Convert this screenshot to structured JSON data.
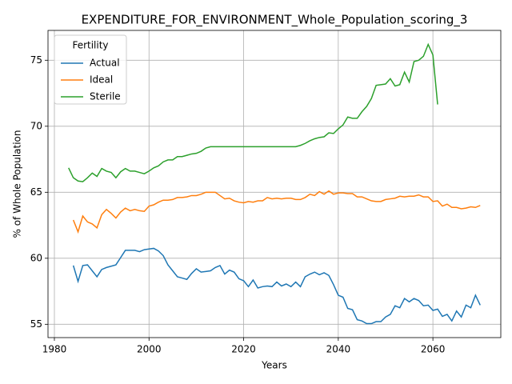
{
  "chart_data": {
    "type": "line",
    "title": "EXPENDITURE_FOR_ENVIRONMENT_Whole_Population_scoring_3",
    "xlabel": "Years",
    "ylabel": "% of Whole Population",
    "x": [
      1983,
      1984,
      1985,
      1986,
      1987,
      1988,
      1989,
      1990,
      1991,
      1992,
      1993,
      1994,
      1995,
      1996,
      1997,
      1998,
      1999,
      2000,
      2001,
      2002,
      2003,
      2004,
      2005,
      2006,
      2007,
      2008,
      2009,
      2010,
      2011,
      2012,
      2013,
      2014,
      2015,
      2016,
      2017,
      2018,
      2019,
      2020,
      2021,
      2022,
      2023,
      2024,
      2025,
      2026,
      2027,
      2028,
      2029,
      2030,
      2031,
      2032,
      2033,
      2034,
      2035,
      2036,
      2037,
      2038,
      2039,
      2040,
      2041,
      2042,
      2043,
      2044,
      2045,
      2046,
      2047,
      2048,
      2049,
      2050,
      2051,
      2052,
      2053,
      2054,
      2055,
      2056,
      2057,
      2058,
      2059,
      2060,
      2061,
      2062,
      2063,
      2064,
      2065,
      2066,
      2067,
      2068,
      2069,
      2070
    ],
    "series": [
      {
        "name": "Actual",
        "color": "#1f77b4",
        "values": [
          null,
          59.45,
          58.25,
          59.45,
          59.5,
          59.05,
          58.6,
          59.15,
          59.3,
          59.4,
          59.5,
          60.05,
          60.6,
          60.6,
          60.6,
          60.5,
          60.65,
          60.7,
          60.75,
          60.55,
          60.2,
          59.5,
          59.05,
          58.6,
          58.5,
          58.4,
          58.85,
          59.2,
          58.95,
          59.0,
          59.05,
          59.3,
          59.45,
          58.8,
          59.1,
          58.95,
          58.45,
          58.3,
          57.85,
          58.35,
          57.75,
          57.85,
          57.9,
          57.85,
          58.2,
          57.9,
          58.05,
          57.85,
          58.2,
          57.85,
          58.6,
          58.8,
          58.95,
          58.75,
          58.9,
          58.7,
          58.0,
          57.2,
          57.05,
          56.2,
          56.1,
          55.35,
          55.25,
          55.05,
          55.05,
          55.2,
          55.2,
          55.55,
          55.75,
          56.4,
          56.25,
          56.95,
          56.7,
          56.95,
          56.8,
          56.4,
          56.45,
          56.05,
          56.15,
          55.6,
          55.75,
          55.25,
          56.0,
          55.55,
          56.45,
          56.25,
          57.2,
          56.45
        ]
      },
      {
        "name": "Ideal",
        "color": "#ff7f0e",
        "values": [
          null,
          62.9,
          62.0,
          63.2,
          62.75,
          62.6,
          62.3,
          63.3,
          63.7,
          63.4,
          63.05,
          63.5,
          63.8,
          63.6,
          63.7,
          63.6,
          63.55,
          63.95,
          64.05,
          64.25,
          64.4,
          64.4,
          64.45,
          64.6,
          64.6,
          64.65,
          64.75,
          64.75,
          64.85,
          65.0,
          65.0,
          65.0,
          64.75,
          64.5,
          64.55,
          64.35,
          64.25,
          64.2,
          64.3,
          64.25,
          64.35,
          64.35,
          64.6,
          64.5,
          64.55,
          64.5,
          64.55,
          64.55,
          64.45,
          64.45,
          64.6,
          64.85,
          64.75,
          65.05,
          64.85,
          65.1,
          64.85,
          64.95,
          64.95,
          64.9,
          64.9,
          64.65,
          64.65,
          64.5,
          64.35,
          64.3,
          64.3,
          64.45,
          64.5,
          64.55,
          64.7,
          64.65,
          64.7,
          64.7,
          64.8,
          64.65,
          64.65,
          64.3,
          64.35,
          63.95,
          64.1,
          63.85,
          63.85,
          63.75,
          63.8,
          63.9,
          63.85,
          64.0
        ]
      },
      {
        "name": "Sterile",
        "color": "#2ca02c",
        "values": [
          66.85,
          66.1,
          65.85,
          65.8,
          66.1,
          66.45,
          66.2,
          66.8,
          66.6,
          66.5,
          66.1,
          66.55,
          66.8,
          66.6,
          66.6,
          66.5,
          66.4,
          66.6,
          66.85,
          67.0,
          67.3,
          67.45,
          67.45,
          67.7,
          67.7,
          67.8,
          67.9,
          67.95,
          68.1,
          68.35,
          68.45,
          68.45,
          68.45,
          68.45,
          68.45,
          68.45,
          68.45,
          68.45,
          68.45,
          68.45,
          68.45,
          68.45,
          68.45,
          68.45,
          68.45,
          68.45,
          68.45,
          68.45,
          68.45,
          68.55,
          68.7,
          68.9,
          69.05,
          69.15,
          69.2,
          69.5,
          69.45,
          69.8,
          70.1,
          70.7,
          70.6,
          70.6,
          71.1,
          71.5,
          72.1,
          73.1,
          73.15,
          73.2,
          73.6,
          73.05,
          73.15,
          74.1,
          73.35,
          74.9,
          75.0,
          75.3,
          76.2,
          75.4,
          71.65,
          null,
          null,
          null,
          null,
          null,
          null,
          null,
          null,
          null
        ]
      }
    ],
    "xlim": [
      1978.65,
      2074.35
    ],
    "xticks": [
      1980,
      2000,
      2020,
      2040,
      2060
    ],
    "ylim": [
      53.99,
      77.26
    ],
    "yticks": [
      55,
      60,
      65,
      70,
      75
    ],
    "grid": true,
    "legend": {
      "title": "Fertility",
      "loc": "upper left"
    }
  }
}
